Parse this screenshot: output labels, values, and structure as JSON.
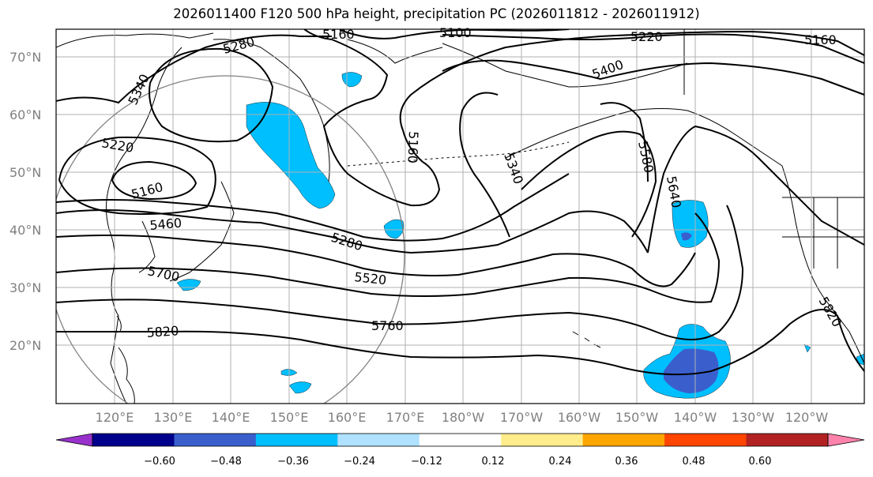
{
  "title": "2026011400 F120 500 hPa height, precipitation PC (2026011812 - 2026011912)",
  "lat_labels": [
    "70°N",
    "60°N",
    "50°N",
    "40°N",
    "30°N",
    "20°N"
  ],
  "lon_labels": [
    "120°E",
    "130°E",
    "140°E",
    "150°E",
    "160°E",
    "170°E",
    "180°W",
    "170°W",
    "160°W",
    "150°W",
    "140°W",
    "130°W",
    "120°W"
  ],
  "contour_labels": [
    "5160",
    "5100",
    "5220",
    "5160",
    "5280",
    "5340",
    "5400",
    "5220",
    "5160",
    "5160",
    "5340",
    "5580",
    "5640",
    "5460",
    "5280",
    "5520",
    "5700",
    "5760",
    "5820",
    "5820"
  ],
  "colorbar": {
    "tick_labels": [
      "−0.60",
      "−0.48",
      "−0.36",
      "−0.24",
      "−0.12",
      "0.12",
      "0.24",
      "0.36",
      "0.48",
      "0.60"
    ],
    "colors": [
      "#9932cc",
      "#00008b",
      "#3a5fcd",
      "#00bfff",
      "#b0e2ff",
      "#ffffff",
      "#ffec8b",
      "#ffa500",
      "#ff4500",
      "#b22222",
      "#ff82ab"
    ]
  },
  "shading_colors": {
    "light": "#00bfff",
    "dark": "#3a5fcd"
  }
}
